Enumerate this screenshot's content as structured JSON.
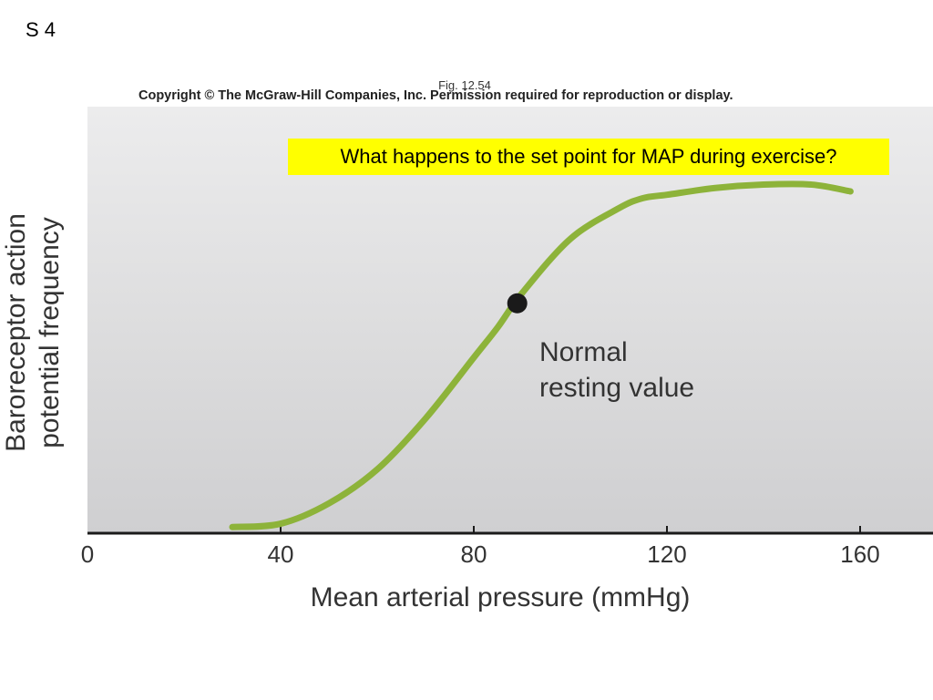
{
  "slide": {
    "label": "S 4"
  },
  "figure": {
    "label": "Fig. 12.54",
    "copyright": "Copyright © The McGraw-Hill Companies, Inc. Permission required for reproduction or display."
  },
  "question": "What happens to the set point for MAP during exercise?",
  "colors": {
    "curve": "#8db33a",
    "highlight": "#ffff00",
    "marker": "#1a1a1a",
    "axis": "#1a1a1a"
  },
  "chart_data": {
    "type": "line",
    "xlabel": "Mean arterial pressure (mmHg)",
    "ylabel_lines": [
      "Baroreceptor action",
      "potential frequency"
    ],
    "xlim": [
      0,
      165
    ],
    "ylim": [
      0,
      1
    ],
    "grid": false,
    "x_ticks": [
      0,
      40,
      80,
      120,
      160
    ],
    "series": [
      {
        "x": [
          30,
          40,
          50,
          60,
          70,
          80,
          85,
          90,
          100,
          110,
          115,
          120,
          130,
          140,
          150,
          158
        ],
        "y": [
          0.01,
          0.02,
          0.08,
          0.18,
          0.33,
          0.51,
          0.6,
          0.7,
          0.86,
          0.95,
          0.98,
          0.99,
          1.01,
          1.02,
          1.02,
          1.0
        ]
      }
    ],
    "marker": {
      "x": 89,
      "y": 0.67
    },
    "annotation_lines": [
      "Normal",
      "resting value"
    ]
  }
}
